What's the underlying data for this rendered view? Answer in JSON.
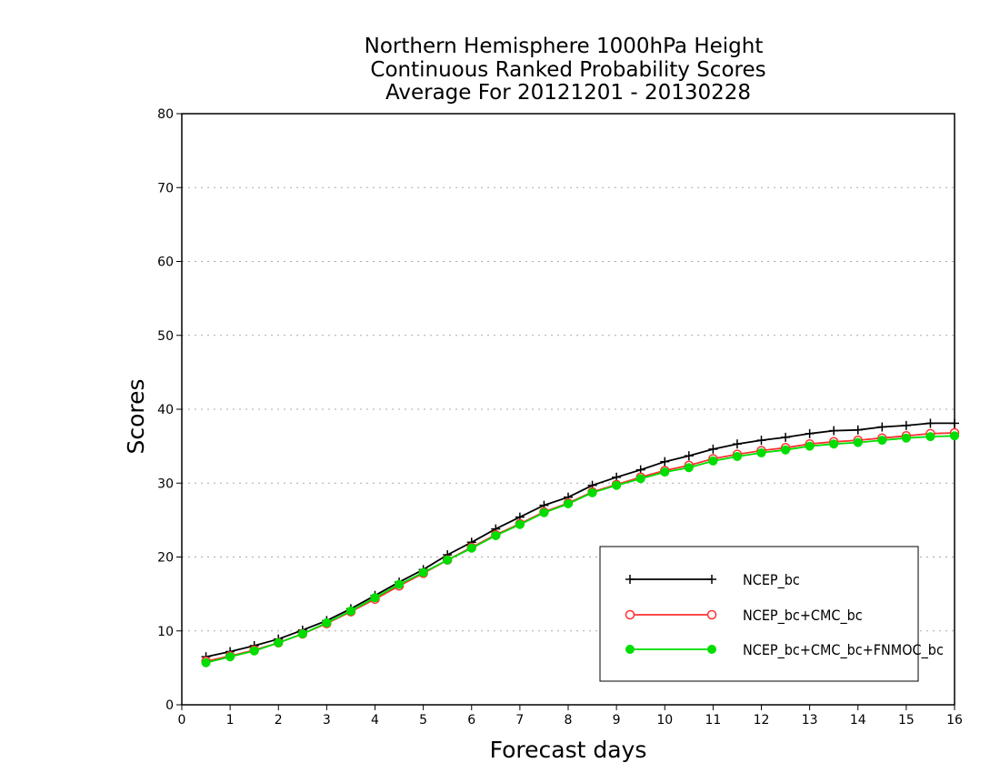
{
  "chart_data": {
    "type": "line",
    "title_lines": [
      "Northern Hemisphere 1000hPa Height",
      "Continuous Ranked Probability Scores",
      "Average For 20121201 - 20130228"
    ],
    "xlabel": "Forecast days",
    "ylabel": "Scores",
    "xlim": [
      0,
      16
    ],
    "ylim": [
      0,
      80
    ],
    "xticks": [
      "0",
      "1",
      "2",
      "3",
      "4",
      "5",
      "6",
      "7",
      "8",
      "9",
      "10",
      "11",
      "12",
      "13",
      "14",
      "15",
      "16"
    ],
    "yticks": [
      "0",
      "10",
      "20",
      "30",
      "40",
      "50",
      "60",
      "70",
      "80"
    ],
    "grid": "horizontal dotted",
    "legend_position": "bottom-right",
    "x": [
      0.5,
      1.0,
      1.5,
      2.0,
      2.5,
      3.0,
      3.5,
      4.0,
      4.5,
      5.0,
      5.5,
      6.0,
      6.5,
      7.0,
      7.5,
      8.0,
      8.5,
      9.0,
      9.5,
      10.0,
      10.5,
      11.0,
      11.5,
      12.0,
      12.5,
      13.0,
      13.5,
      14.0,
      14.5,
      15.0,
      15.5,
      16.0
    ],
    "series": [
      {
        "name": "NCEP_bc",
        "color": "#000000",
        "marker": "plus",
        "values": [
          6.5,
          7.2,
          8.0,
          8.9,
          10.1,
          11.4,
          13.0,
          14.8,
          16.6,
          18.3,
          20.3,
          22.0,
          23.8,
          25.4,
          27.0,
          28.1,
          29.7,
          30.8,
          31.8,
          32.9,
          33.7,
          34.6,
          35.3,
          35.8,
          36.2,
          36.7,
          37.1,
          37.2,
          37.6,
          37.8,
          38.1,
          38.1
        ]
      },
      {
        "name": "NCEP_bc+CMC_bc",
        "color": "#ff3030",
        "marker": "circle-open",
        "values": [
          5.9,
          6.6,
          7.4,
          8.4,
          9.6,
          11.0,
          12.6,
          14.3,
          16.1,
          17.8,
          19.6,
          21.3,
          23.0,
          24.5,
          26.1,
          27.3,
          28.8,
          29.8,
          30.8,
          31.7,
          32.4,
          33.3,
          33.9,
          34.4,
          34.8,
          35.3,
          35.6,
          35.8,
          36.1,
          36.4,
          36.7,
          36.8
        ]
      },
      {
        "name": "NCEP_bc+CMC_bc+FNMOC_bc",
        "color": "#00dd00",
        "marker": "circle-filled",
        "values": [
          5.7,
          6.5,
          7.3,
          8.4,
          9.6,
          11.1,
          12.7,
          14.5,
          16.3,
          17.9,
          19.6,
          21.2,
          22.9,
          24.4,
          26.0,
          27.2,
          28.7,
          29.7,
          30.6,
          31.5,
          32.1,
          33.0,
          33.6,
          34.1,
          34.5,
          35.0,
          35.3,
          35.5,
          35.8,
          36.1,
          36.3,
          36.4
        ]
      }
    ]
  }
}
